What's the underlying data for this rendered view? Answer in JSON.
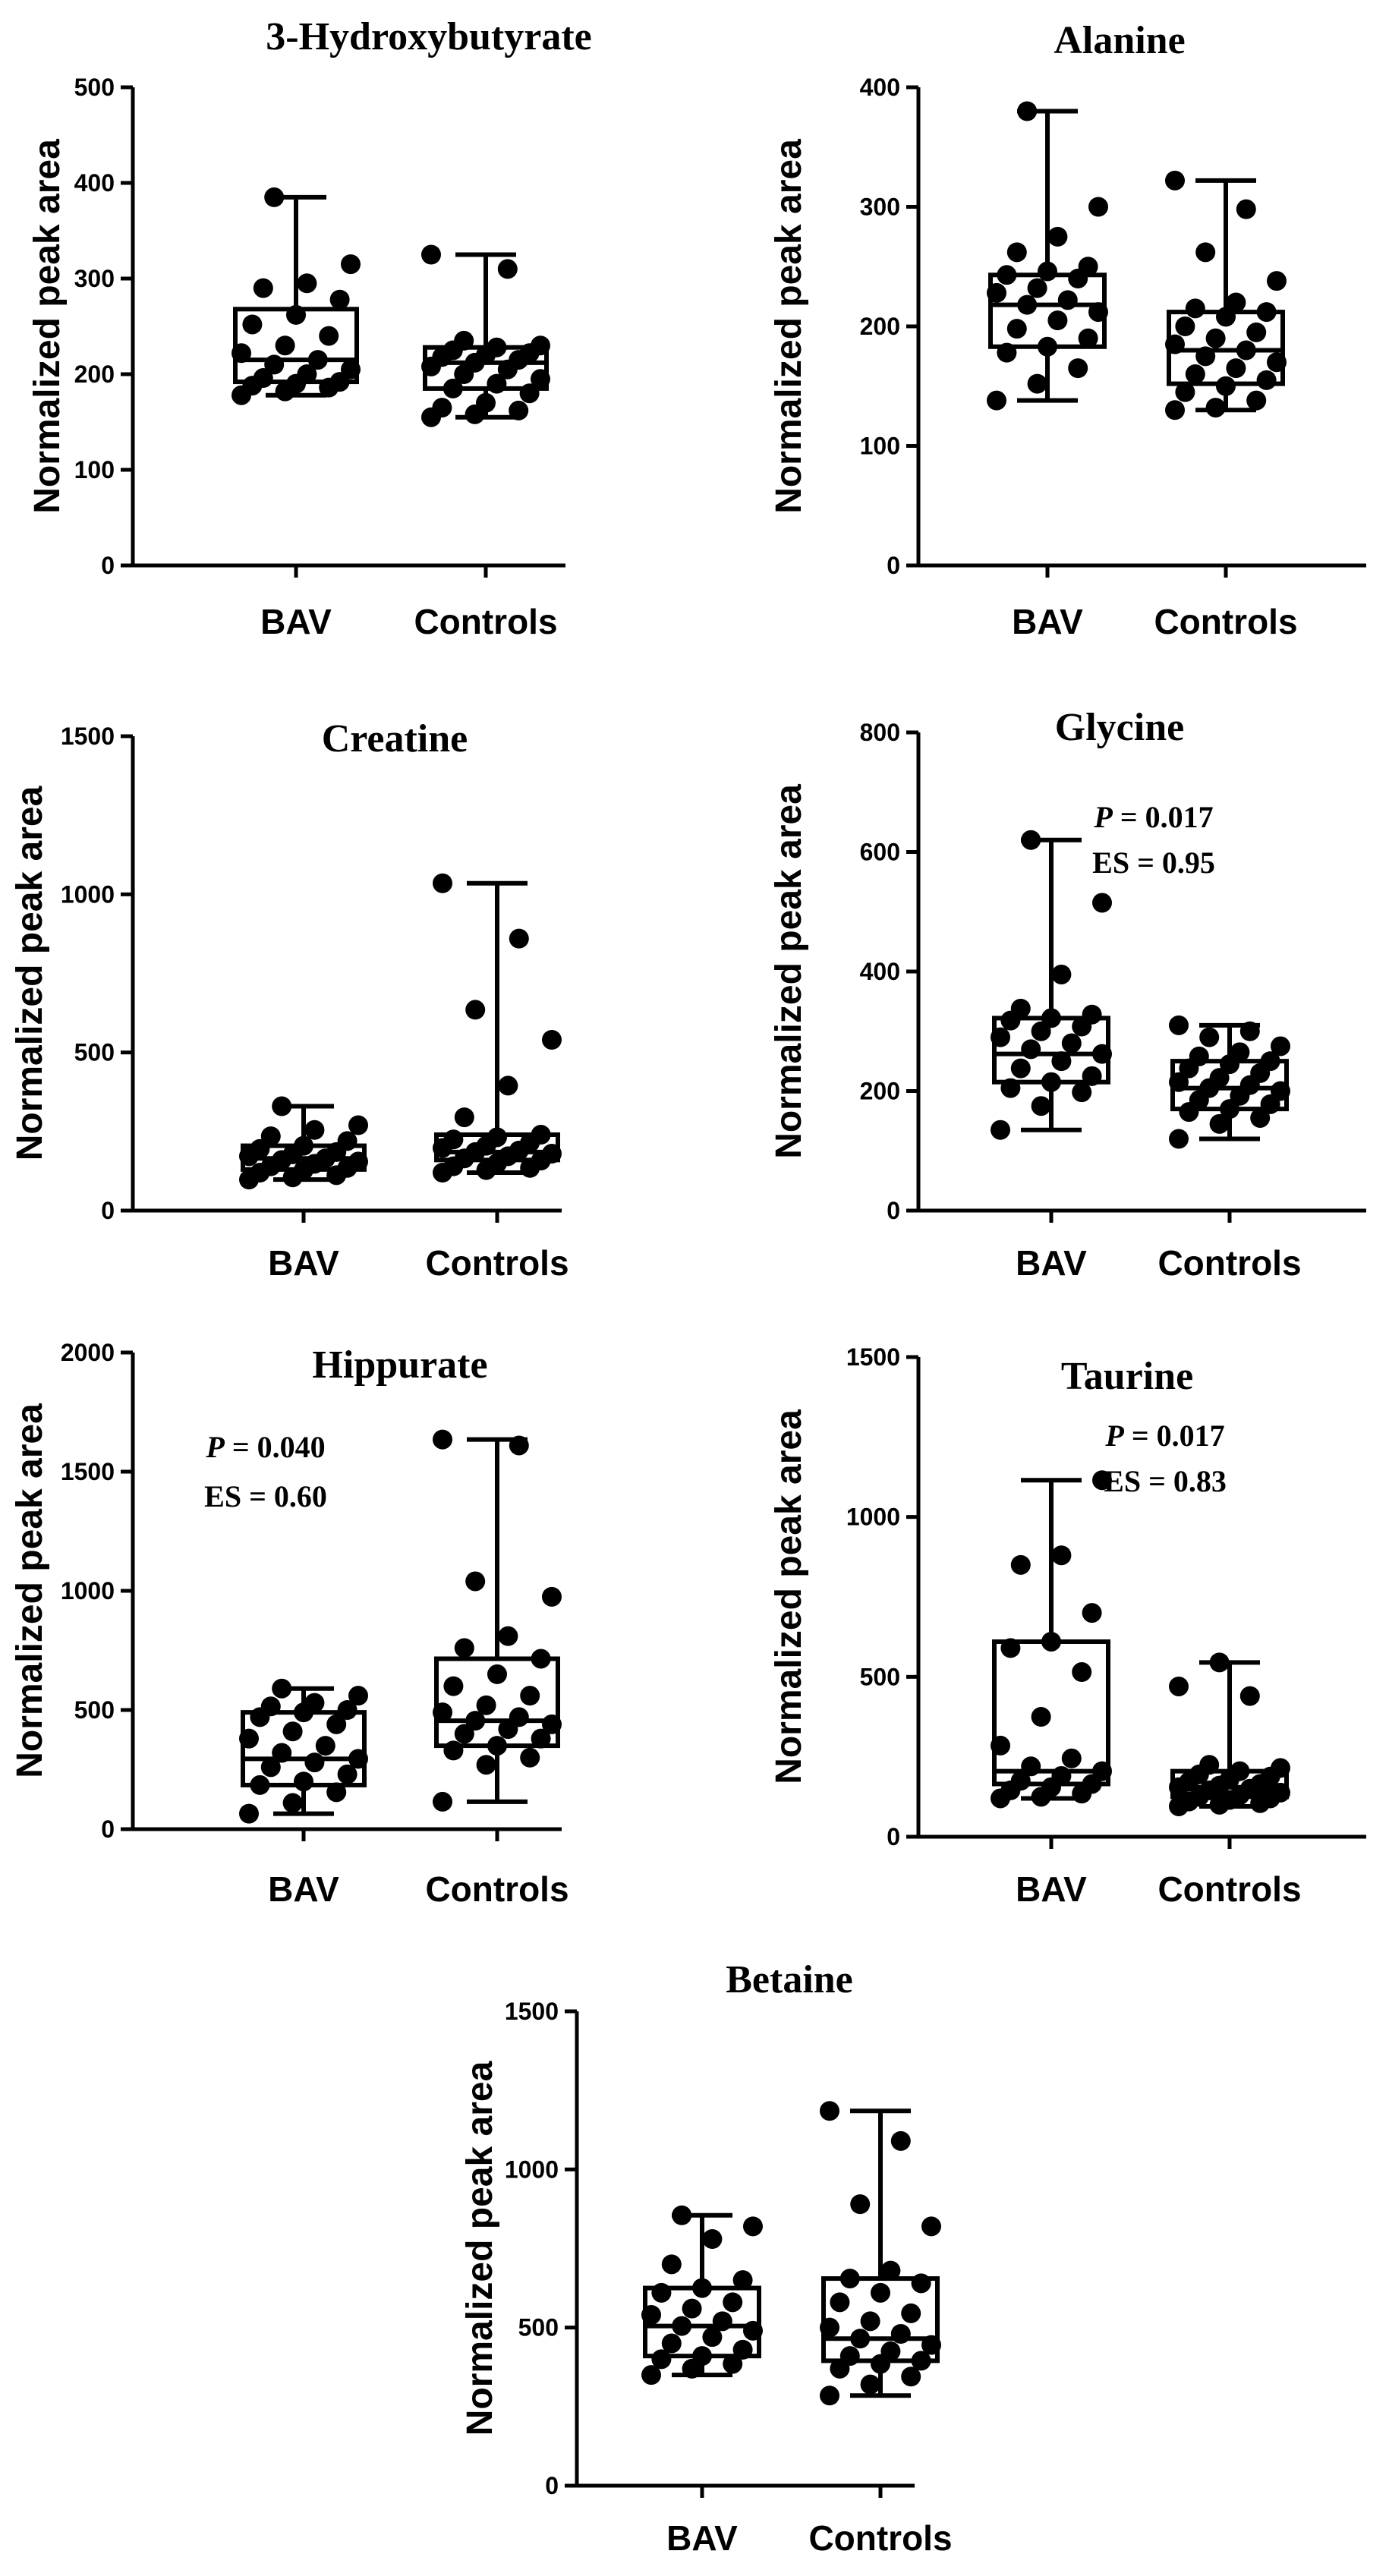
{
  "figure": {
    "ylabel": "Normalized  peak area",
    "categories": [
      "BAV",
      "Controls"
    ]
  },
  "chart_data": [
    {
      "type": "box",
      "title": "3-Hydroxybutyrate",
      "ylabel": "Normalized  peak area",
      "categories": [
        "BAV",
        "Controls"
      ],
      "ylim": [
        0,
        500
      ],
      "yticks": [
        0,
        100,
        200,
        300,
        400,
        500
      ],
      "series": [
        {
          "name": "BAV",
          "min": 178,
          "q1": 192,
          "median": 215,
          "q3": 268,
          "max": 385,
          "points": [
            178,
            182,
            186,
            188,
            190,
            192,
            196,
            200,
            205,
            210,
            215,
            222,
            230,
            240,
            252,
            262,
            278,
            290,
            295,
            315,
            385
          ]
        },
        {
          "name": "Controls",
          "min": 155,
          "q1": 185,
          "median": 212,
          "q3": 228,
          "max": 325,
          "points": [
            155,
            158,
            162,
            165,
            170,
            180,
            185,
            190,
            195,
            200,
            205,
            208,
            212,
            215,
            218,
            220,
            222,
            225,
            228,
            230,
            235,
            310,
            325
          ]
        }
      ],
      "annotation": null
    },
    {
      "type": "box",
      "title": "Alanine",
      "ylabel": "Normalized  peak area",
      "categories": [
        "BAV",
        "Controls"
      ],
      "ylim": [
        0,
        400
      ],
      "yticks": [
        0,
        100,
        200,
        300,
        400
      ],
      "series": [
        {
          "name": "BAV",
          "min": 138,
          "q1": 183,
          "median": 218,
          "q3": 243,
          "max": 380,
          "points": [
            138,
            152,
            165,
            178,
            183,
            190,
            198,
            205,
            212,
            218,
            222,
            228,
            232,
            240,
            243,
            246,
            250,
            262,
            275,
            300,
            380
          ]
        },
        {
          "name": "Controls",
          "min": 130,
          "q1": 152,
          "median": 180,
          "q3": 212,
          "max": 322,
          "points": [
            130,
            132,
            138,
            145,
            150,
            155,
            160,
            165,
            170,
            175,
            180,
            185,
            190,
            195,
            200,
            208,
            212,
            215,
            220,
            238,
            262,
            298,
            322
          ]
        }
      ],
      "annotation": null
    },
    {
      "type": "box",
      "title": "Creatine",
      "ylabel": "Normalized  peak area",
      "categories": [
        "BAV",
        "Controls"
      ],
      "ylim": [
        0,
        1500
      ],
      "yticks": [
        0,
        500,
        1000,
        1500
      ],
      "series": [
        {
          "name": "BAV",
          "min": 98,
          "q1": 130,
          "median": 165,
          "q3": 205,
          "max": 330,
          "points": [
            98,
            105,
            112,
            120,
            128,
            135,
            140,
            148,
            155,
            160,
            165,
            172,
            178,
            185,
            195,
            205,
            220,
            235,
            255,
            270,
            330
          ]
        },
        {
          "name": "Controls",
          "min": 120,
          "q1": 160,
          "median": 185,
          "q3": 240,
          "max": 1035,
          "points": [
            120,
            128,
            135,
            140,
            150,
            158,
            165,
            172,
            180,
            185,
            190,
            198,
            205,
            215,
            225,
            232,
            240,
            295,
            395,
            540,
            635,
            860,
            1035
          ]
        }
      ],
      "annotation": null
    },
    {
      "type": "box",
      "title": "Glycine",
      "ylabel": "Normalized  peak area",
      "categories": [
        "BAV",
        "Controls"
      ],
      "ylim": [
        0,
        800
      ],
      "yticks": [
        0,
        200,
        400,
        600,
        800
      ],
      "series": [
        {
          "name": "BAV",
          "min": 135,
          "q1": 215,
          "median": 262,
          "q3": 322,
          "max": 620,
          "points": [
            135,
            175,
            198,
            205,
            215,
            225,
            238,
            250,
            262,
            270,
            280,
            290,
            300,
            308,
            318,
            322,
            328,
            338,
            395,
            515,
            620
          ]
        },
        {
          "name": "Controls",
          "min": 120,
          "q1": 170,
          "median": 205,
          "q3": 250,
          "max": 310,
          "points": [
            120,
            145,
            155,
            165,
            170,
            178,
            185,
            192,
            200,
            205,
            210,
            215,
            222,
            230,
            238,
            245,
            250,
            258,
            265,
            275,
            290,
            300,
            310
          ]
        }
      ],
      "annotation": {
        "p_label": "P",
        "p_text": " = 0.017",
        "es_text": "ES = 0.95"
      }
    },
    {
      "type": "box",
      "title": "Hippurate",
      "ylabel": "Normalized  peak area",
      "categories": [
        "BAV",
        "Controls"
      ],
      "ylim": [
        0,
        2000
      ],
      "yticks": [
        0,
        500,
        1000,
        1500,
        2000
      ],
      "series": [
        {
          "name": "BAV",
          "min": 65,
          "q1": 185,
          "median": 295,
          "q3": 490,
          "max": 590,
          "points": [
            65,
            110,
            155,
            185,
            200,
            230,
            260,
            280,
            295,
            320,
            350,
            380,
            410,
            440,
            470,
            490,
            500,
            515,
            530,
            560,
            590
          ]
        },
        {
          "name": "Controls",
          "min": 115,
          "q1": 350,
          "median": 455,
          "q3": 715,
          "max": 1635,
          "points": [
            115,
            270,
            300,
            330,
            350,
            380,
            400,
            420,
            440,
            455,
            470,
            490,
            520,
            560,
            600,
            650,
            715,
            760,
            810,
            975,
            1040,
            1610,
            1635
          ]
        }
      ],
      "annotation": {
        "p_label": "P",
        "p_text": " = 0.040",
        "es_text": "ES = 0.60"
      }
    },
    {
      "type": "box",
      "title": "Taurine",
      "ylabel": "Normalized  peak area",
      "categories": [
        "BAV",
        "Controls"
      ],
      "ylim": [
        0,
        1500
      ],
      "yticks": [
        0,
        500,
        1000,
        1500
      ],
      "series": [
        {
          "name": "BAV",
          "min": 120,
          "q1": 165,
          "median": 205,
          "q3": 610,
          "max": 1115,
          "points": [
            120,
            125,
            135,
            145,
            155,
            165,
            175,
            190,
            205,
            220,
            245,
            285,
            375,
            515,
            590,
            610,
            700,
            850,
            880,
            1115
          ]
        },
        {
          "name": "Controls",
          "min": 95,
          "q1": 125,
          "median": 155,
          "q3": 205,
          "max": 545,
          "points": [
            95,
            100,
            105,
            110,
            115,
            120,
            125,
            130,
            138,
            145,
            150,
            155,
            160,
            165,
            172,
            180,
            188,
            195,
            205,
            215,
            225,
            440,
            470,
            545
          ]
        }
      ],
      "annotation": {
        "p_label": "P",
        "p_text": " = 0.017",
        "es_text": "ES = 0.83"
      }
    },
    {
      "type": "box",
      "title": "Betaine",
      "ylabel": "Normalized  peak area",
      "categories": [
        "BAV",
        "Controls"
      ],
      "ylim": [
        0,
        1500
      ],
      "yticks": [
        0,
        500,
        1000,
        1500
      ],
      "series": [
        {
          "name": "BAV",
          "min": 350,
          "q1": 410,
          "median": 505,
          "q3": 625,
          "max": 855,
          "points": [
            350,
            370,
            385,
            400,
            410,
            430,
            450,
            470,
            490,
            505,
            520,
            540,
            560,
            580,
            610,
            625,
            650,
            700,
            780,
            820,
            855
          ]
        },
        {
          "name": "Controls",
          "min": 285,
          "q1": 395,
          "median": 465,
          "q3": 655,
          "max": 1185,
          "points": [
            285,
            320,
            345,
            370,
            385,
            395,
            410,
            425,
            445,
            465,
            480,
            500,
            520,
            545,
            580,
            610,
            640,
            655,
            680,
            820,
            890,
            1090,
            1185
          ]
        }
      ],
      "annotation": null
    }
  ]
}
